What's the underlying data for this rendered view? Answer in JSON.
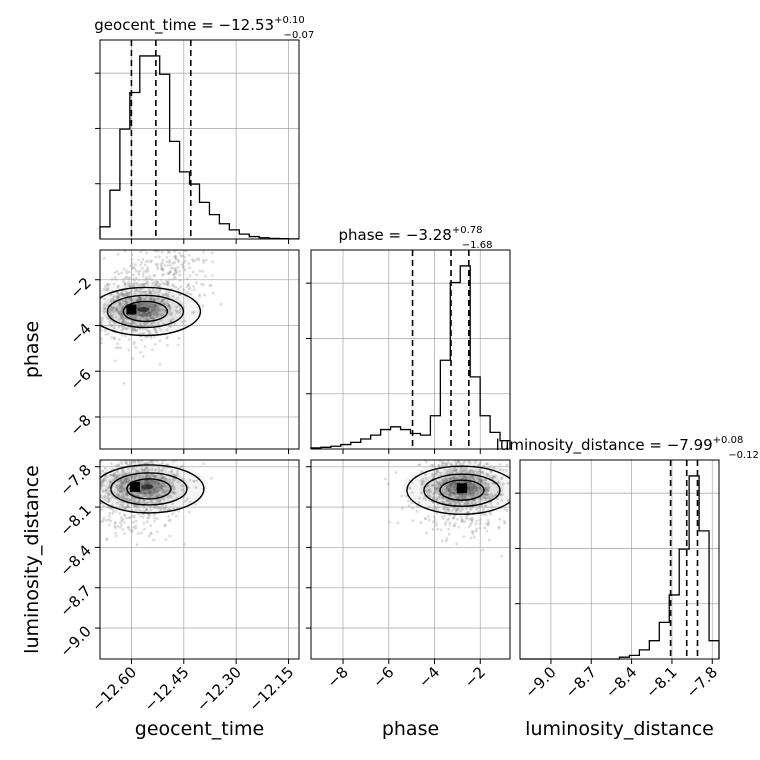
{
  "chart_data": {
    "type": "corner",
    "parameters": [
      {
        "name": "geocent_time",
        "title": {
          "prefix": "geocent_time = ",
          "value": "−12.53",
          "plus": "+0.10",
          "minus": "−0.07"
        },
        "range": [
          -12.69,
          -12.12
        ],
        "quantiles": [
          -12.6,
          -12.53,
          -12.43
        ],
        "ticks": [
          -12.6,
          -12.45,
          -12.3,
          -12.15
        ],
        "tick_labels": [
          "−12.60",
          "−12.45",
          "−12.30",
          "−12.15"
        ],
        "hist": [
          2,
          8,
          18,
          24,
          30,
          30,
          27,
          16,
          11,
          9,
          6,
          4,
          2.5,
          1.5,
          0.8,
          0.4,
          0.2,
          0.1,
          0.05,
          0.02
        ]
      },
      {
        "name": "phase",
        "title": {
          "prefix": "phase = ",
          "value": "−3.28",
          "plus": "+0.78",
          "minus": "−1.68"
        },
        "range": [
          -9.4,
          -0.7
        ],
        "quantiles": [
          -4.96,
          -3.28,
          -2.5
        ],
        "ticks": [
          -8,
          -6,
          -4,
          -2
        ],
        "tick_labels": [
          "−8",
          "−6",
          "−4",
          "−2"
        ],
        "hist": [
          0.2,
          0.3,
          0.5,
          0.8,
          1.2,
          1.8,
          2.5,
          3.5,
          4,
          3.5,
          2.8,
          2.5,
          6,
          16,
          30,
          33,
          13,
          6,
          3,
          1.5
        ]
      },
      {
        "name": "luminosity_distance",
        "title": {
          "prefix": "luminosity_distance = ",
          "value": "−7.99",
          "plus": "+0.08",
          "minus": "−0.12"
        },
        "range": [
          -9.23,
          -7.75
        ],
        "quantiles": [
          -8.11,
          -7.99,
          -7.91
        ],
        "ticks": [
          -9.0,
          -8.7,
          -8.4,
          -8.1,
          -7.8
        ],
        "tick_labels": [
          "−9.0",
          "−8.7",
          "−8.4",
          "−8.1",
          "−7.8"
        ],
        "hist": [
          0,
          0,
          0,
          0,
          0,
          0,
          0,
          0,
          0,
          0,
          0.01,
          0.02,
          0.05,
          0.1,
          0.2,
          0.35,
          0.6,
          1.0,
          0.7,
          0.1
        ]
      }
    ],
    "density_peaks": [
      {
        "x_param": 0,
        "y_param": 1,
        "x": -12.6,
        "y": -3.3
      },
      {
        "x_param": 0,
        "y_param": 2,
        "x": -12.59,
        "y": -7.95
      },
      {
        "x_param": 1,
        "y_param": 2,
        "x": -2.8,
        "y": -7.96
      }
    ],
    "grid": true,
    "quantile_lines": "dashed"
  }
}
